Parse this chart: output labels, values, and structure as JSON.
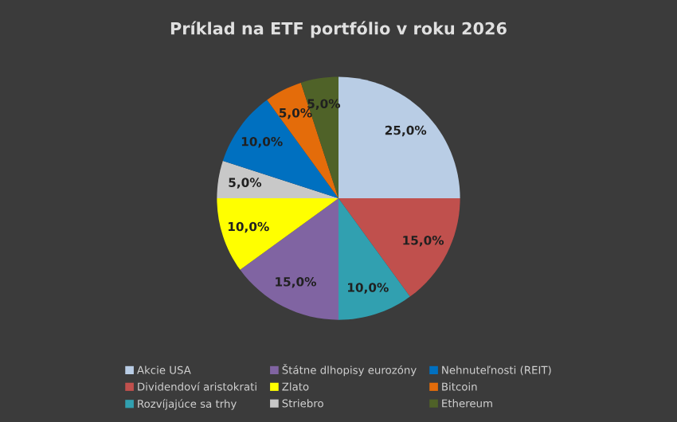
{
  "chart_data": {
    "type": "pie",
    "title": "Príklad na ETF portfólio v roku 2026",
    "categories": [
      "Akcie USA",
      "Dividendoví aristokrati",
      "Rozvíjajúce sa trhy",
      "Štátne dlhopisy eurozóny",
      "Zlato",
      "Striebro",
      "Nehnuteľnosti (REIT)",
      "Bitcoin",
      "Ethereum"
    ],
    "values": [
      25,
      15,
      10,
      15,
      10,
      5,
      10,
      5,
      5
    ],
    "value_labels": [
      "25,0%",
      "15,0%",
      "10,0%",
      "15,0%",
      "10,0%",
      "5,0%",
      "10,0%",
      "5,0%",
      "5,0%"
    ],
    "colors": [
      "#b9cde5",
      "#c0504d",
      "#31a0b0",
      "#8064a2",
      "#ffff00",
      "#c8c8c8",
      "#0070c0",
      "#e46c0a",
      "#4f6228"
    ],
    "legend": "bottom"
  }
}
